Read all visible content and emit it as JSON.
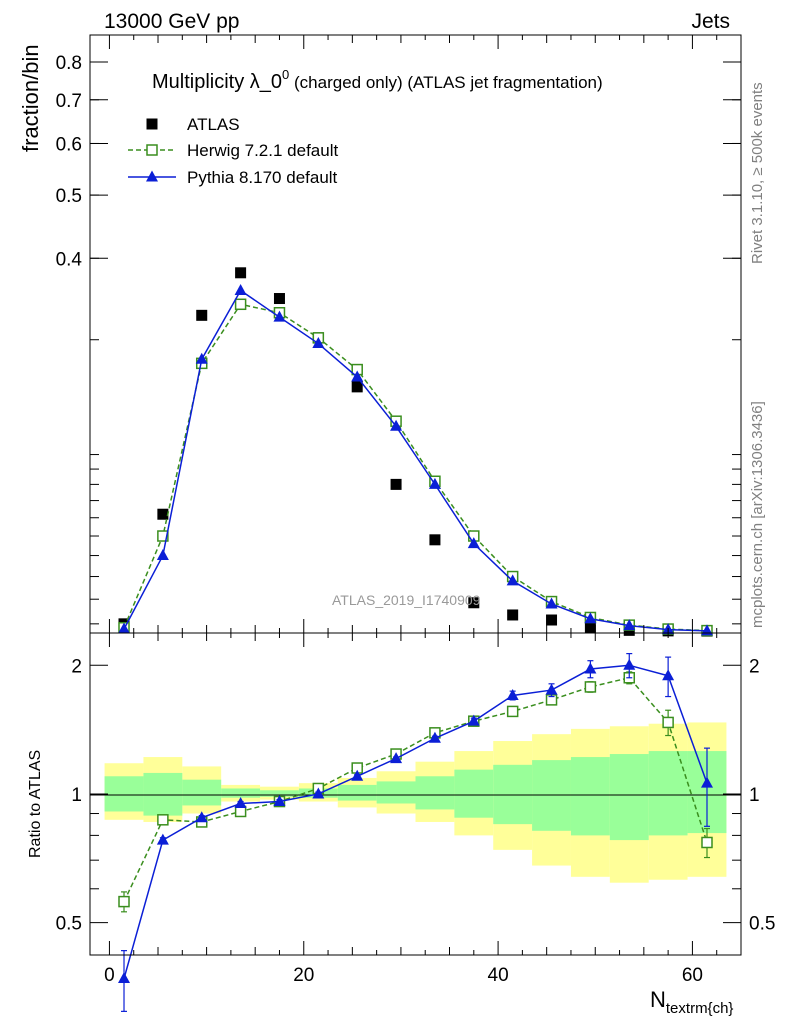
{
  "header": {
    "left": "13000 GeV pp",
    "right": "Jets",
    "side_rivet": "Rivet 3.1.10, ≥ 500k events",
    "side_mcplots": "mcplots.cern.ch [arXiv:1306.3436]",
    "watermark": "ATLAS_2019_I1740909"
  },
  "chart_data": [
    {
      "type": "scatter",
      "panel": "main",
      "title_main": "Multiplicity λ_0",
      "title_sup": "0",
      "title_rest": " (charged only) (ATLAS jet fragmentation)",
      "ylabel": "fraction/bin",
      "yscale": "log",
      "xlim": [
        -2,
        65
      ],
      "ylim": [
        0.1065,
        0.88
      ],
      "y_ticks": [
        0.4,
        0.5,
        0.6,
        0.7,
        0.8
      ],
      "y_tick_labels": [
        "0.4",
        "0.5",
        "0.6",
        "0.7",
        "0.8"
      ],
      "x": [
        1.5,
        5.5,
        9.5,
        13.5,
        17.5,
        21.5,
        25.5,
        29.5,
        33.5,
        37.5,
        41.5,
        45.5,
        49.5,
        53.5,
        57.5,
        61.5
      ],
      "legend": [
        "ATLAS",
        "Herwig 7.2.1 default",
        "Pythia 8.170 default"
      ],
      "series": [
        {
          "name": "ATLAS",
          "color": "#000000",
          "marker": "square-filled",
          "values": [
            0.11,
            0.162,
            0.327,
            0.38,
            0.347,
            0.302,
            0.254,
            0.18,
            0.148,
            0.1185,
            0.1135,
            0.1115,
            0.1085,
            0.1075,
            0.1073,
            0.1072
          ]
        },
        {
          "name": "Herwig 7.2.1 default",
          "color": "#3a8e1e",
          "marker": "square-open",
          "dash": true,
          "values": [
            0.1085,
            0.15,
            0.276,
            0.34,
            0.33,
            0.302,
            0.27,
            0.225,
            0.182,
            0.15,
            0.13,
            0.119,
            0.1125,
            0.1095,
            0.108,
            0.1074
          ]
        },
        {
          "name": "Pythia 8.170 default",
          "color": "#0b1fd6",
          "marker": "triangle-filled",
          "values": [
            0.108,
            0.14,
            0.28,
            0.357,
            0.325,
            0.296,
            0.263,
            0.221,
            0.18,
            0.146,
            0.128,
            0.118,
            0.112,
            0.1093,
            0.1078,
            0.1073
          ]
        }
      ]
    },
    {
      "type": "scatter",
      "panel": "ratio",
      "ylabel": "Ratio to ATLAS",
      "xlabel_main": "N",
      "xlabel_sub": "textrm{ch}",
      "xlim": [
        -2,
        65
      ],
      "ylim": [
        0.42,
        2.38
      ],
      "y_ticks": [
        0.5,
        1,
        2
      ],
      "y_tick_labels": [
        "0.5",
        "1",
        "2"
      ],
      "x_ticks": [
        0,
        20,
        40,
        60
      ],
      "x_tick_labels": [
        "0",
        "20",
        "40",
        "60"
      ],
      "bands": {
        "x_edges": [
          -0.5,
          3.5,
          7.5,
          11.5,
          15.5,
          19.5,
          23.5,
          27.5,
          31.5,
          35.5,
          39.5,
          43.5,
          47.5,
          51.5,
          55.5,
          59.5,
          63.5
        ],
        "outer": {
          "color": "#ffff99",
          "lo": [
            0.87,
            0.86,
            0.9,
            0.96,
            0.97,
            0.96,
            0.93,
            0.9,
            0.86,
            0.8,
            0.74,
            0.68,
            0.64,
            0.62,
            0.63,
            0.64
          ],
          "hi": [
            1.18,
            1.22,
            1.16,
            1.05,
            1.04,
            1.06,
            1.09,
            1.13,
            1.19,
            1.26,
            1.33,
            1.38,
            1.42,
            1.44,
            1.46,
            1.47
          ]
        },
        "inner": {
          "color": "#99ff99",
          "lo": [
            0.91,
            0.89,
            0.94,
            0.98,
            0.985,
            0.98,
            0.965,
            0.95,
            0.92,
            0.88,
            0.85,
            0.82,
            0.8,
            0.78,
            0.8,
            0.81
          ],
          "hi": [
            1.1,
            1.12,
            1.08,
            1.03,
            1.02,
            1.03,
            1.05,
            1.07,
            1.1,
            1.14,
            1.17,
            1.2,
            1.22,
            1.24,
            1.26,
            1.26
          ]
        }
      },
      "x": [
        1.5,
        5.5,
        9.5,
        13.5,
        17.5,
        21.5,
        25.5,
        29.5,
        33.5,
        37.5,
        41.5,
        45.5,
        49.5,
        53.5,
        57.5,
        61.5
      ],
      "series": [
        {
          "name": "Herwig 7.2.1 default",
          "color": "#3a8e1e",
          "marker": "square-open",
          "dash": true,
          "values": [
            0.56,
            0.87,
            0.86,
            0.91,
            0.96,
            1.03,
            1.15,
            1.24,
            1.39,
            1.48,
            1.56,
            1.66,
            1.78,
            1.87,
            1.47,
            0.77
          ],
          "err_lo": [
            0.03,
            0.01,
            0.01,
            0.01,
            0.01,
            0.01,
            0.01,
            0.01,
            0.015,
            0.02,
            0.03,
            0.04,
            0.05,
            0.06,
            0.1,
            0.06
          ],
          "err_hi": [
            0.03,
            0.01,
            0.01,
            0.01,
            0.01,
            0.01,
            0.01,
            0.01,
            0.015,
            0.02,
            0.03,
            0.04,
            0.05,
            0.06,
            0.1,
            0.06
          ]
        },
        {
          "name": "Pythia 8.170 default",
          "color": "#0b1fd6",
          "marker": "triangle-filled",
          "values": [
            0.37,
            0.78,
            0.88,
            0.95,
            0.96,
            1.0,
            1.1,
            1.21,
            1.35,
            1.48,
            1.7,
            1.75,
            1.96,
            2.0,
            1.89,
            1.06
          ],
          "err_lo": [
            0.06,
            0.01,
            0.01,
            0.01,
            0.01,
            0.01,
            0.01,
            0.01,
            0.015,
            0.025,
            0.04,
            0.06,
            0.09,
            0.13,
            0.2,
            0.22
          ],
          "err_hi": [
            0.06,
            0.01,
            0.01,
            0.01,
            0.01,
            0.01,
            0.01,
            0.01,
            0.015,
            0.025,
            0.04,
            0.06,
            0.09,
            0.13,
            0.2,
            0.22
          ]
        }
      ]
    }
  ]
}
